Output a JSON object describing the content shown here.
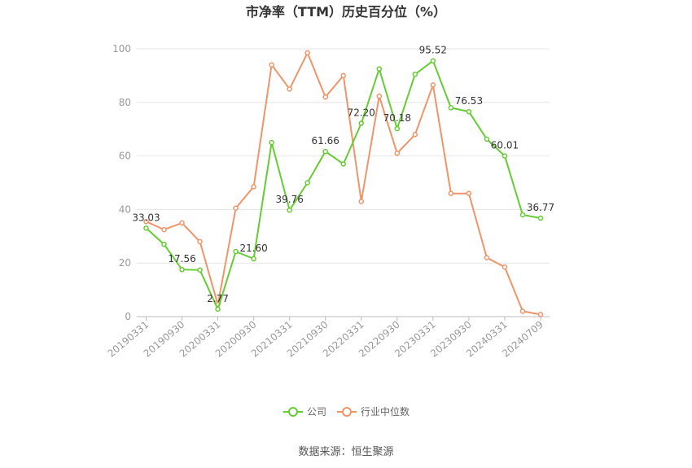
{
  "chart_data": {
    "type": "line",
    "title": "市净率（TTM）历史百分位（%）",
    "source": "数据来源：恒生聚源",
    "ylim": [
      0,
      100
    ],
    "yticks": [
      0,
      20,
      40,
      60,
      80,
      100
    ],
    "grid": true,
    "legend_position": "bottom",
    "x": [
      "20190331",
      "20190630",
      "20190930",
      "20191231",
      "20200331",
      "20200630",
      "20200930",
      "20201231",
      "20210331",
      "20210630",
      "20210930",
      "20211231",
      "20220331",
      "20220630",
      "20220930",
      "20221231",
      "20230331",
      "20230630",
      "20230930",
      "20231231",
      "20240331",
      "20240630",
      "20240709"
    ],
    "xtick_labels": [
      "20190331",
      "20190930",
      "20200331",
      "20200930",
      "20210331",
      "20210930",
      "20220331",
      "20220930",
      "20230331",
      "20230930",
      "20240331",
      "20240709"
    ],
    "series": [
      {
        "name": "公司",
        "color": "#66cc33",
        "values": [
          33.03,
          27.0,
          17.56,
          17.4,
          2.77,
          24.3,
          21.6,
          65.0,
          39.76,
          50.0,
          61.66,
          57.0,
          72.2,
          92.5,
          70.18,
          90.5,
          95.52,
          78.0,
          76.53,
          66.3,
          60.01,
          38.0,
          36.77
        ],
        "labels": {
          "0": "33.03",
          "2": "17.56",
          "4": "2.77",
          "6": "21.60",
          "8": "39.76",
          "10": "61.66",
          "12": "72.20",
          "14": "70.18",
          "16": "95.52",
          "18": "76.53",
          "20": "60.01",
          "22": "36.77"
        }
      },
      {
        "name": "行业中位数",
        "color": "#f0946a",
        "values": [
          35.5,
          32.5,
          35.0,
          28.0,
          4.5,
          40.5,
          48.5,
          94.0,
          85.0,
          98.5,
          82.0,
          90.0,
          43.0,
          82.3,
          61.0,
          68.0,
          86.5,
          46.0,
          46.0,
          22.0,
          18.5,
          2.0,
          0.8
        ]
      }
    ]
  }
}
